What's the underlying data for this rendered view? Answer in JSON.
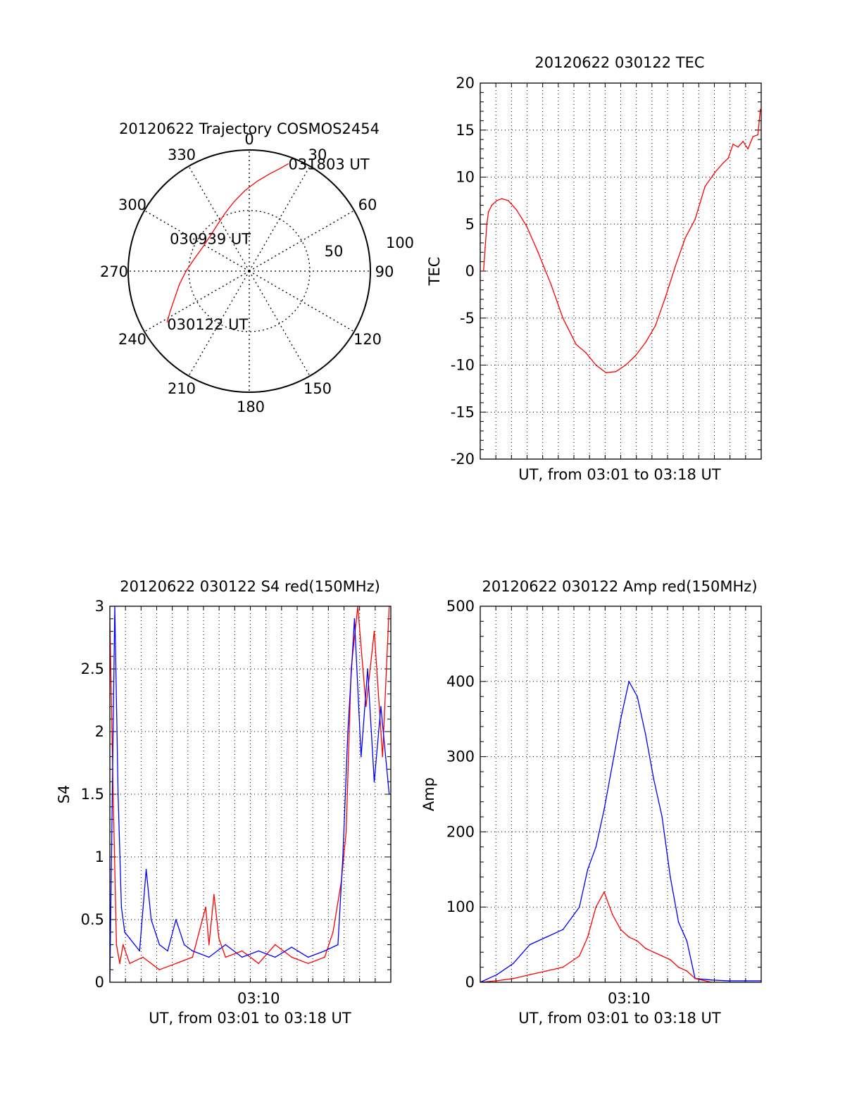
{
  "chart_data": [
    {
      "type": "polar",
      "title": "20120622 Trajectory COSMOS2454",
      "azimuth_labels": [
        "0",
        "30",
        "60",
        "90",
        "120",
        "150",
        "180",
        "210",
        "240",
        "270",
        "300",
        "330"
      ],
      "radius_labels": [
        "50",
        "100"
      ],
      "series": [
        {
          "color": "#ff0000",
          "points": [
            {
              "az": 238,
              "elev": 18
            },
            {
              "az": 243,
              "elev": 24
            },
            {
              "az": 250,
              "elev": 31
            },
            {
              "az": 259,
              "elev": 37
            },
            {
              "az": 270,
              "elev": 43
            },
            {
              "az": 282,
              "elev": 48
            },
            {
              "az": 296,
              "elev": 51
            },
            {
              "az": 312,
              "elev": 51
            },
            {
              "az": 326,
              "elev": 48
            },
            {
              "az": 338,
              "elev": 43
            },
            {
              "az": 348,
              "elev": 37
            },
            {
              "az": 357,
              "elev": 30
            },
            {
              "az": 5,
              "elev": 23
            },
            {
              "az": 12,
              "elev": 16
            },
            {
              "az": 17,
              "elev": 10
            },
            {
              "az": 20,
              "elev": 5
            }
          ]
        }
      ],
      "annotations": [
        {
          "text": "031803 UT",
          "az": 20,
          "elev": 5
        },
        {
          "text": "030939 UT",
          "az": 300,
          "elev": 52
        },
        {
          "text": "030122 UT",
          "az": 238,
          "elev": 18
        }
      ]
    },
    {
      "type": "line",
      "title": "20120622 030122 TEC",
      "xlabel": "UT, from 03:01 to 03:18 UT",
      "ylabel": "TEC",
      "xlim": [
        0,
        17
      ],
      "ylim": [
        -20,
        20
      ],
      "yticks": [
        "-20",
        "-15",
        "-10",
        "-5",
        "0",
        "5",
        "10",
        "15",
        "20"
      ],
      "grid": true,
      "series": [
        {
          "color": "#ff0000",
          "x": [
            0.2,
            0.3,
            0.4,
            0.5,
            0.7,
            1.0,
            1.3,
            1.7,
            2.2,
            2.8,
            3.5,
            4.3,
            5.0,
            5.8,
            6.4,
            7.0,
            7.6,
            8.2,
            8.8,
            9.4,
            10.0,
            10.6,
            11.2,
            11.8,
            12.4,
            13.0,
            13.6,
            14.2,
            14.7,
            15.0,
            15.3,
            15.6,
            15.9,
            16.2,
            16.5,
            16.8,
            16.95
          ],
          "y": [
            0.0,
            2.5,
            5.0,
            6.3,
            7.0,
            7.5,
            7.7,
            7.5,
            6.5,
            4.8,
            2.0,
            -1.5,
            -5.0,
            -7.8,
            -8.7,
            -10.0,
            -10.8,
            -10.7,
            -10.0,
            -9.0,
            -7.6,
            -5.8,
            -2.8,
            0.5,
            3.5,
            5.5,
            9.0,
            10.5,
            11.5,
            12.0,
            13.5,
            13.2,
            13.8,
            13.0,
            14.3,
            14.5,
            17.2
          ]
        }
      ]
    },
    {
      "type": "line",
      "title": "20120622 030122 S4 red(150MHz)",
      "xlabel": "UT, from 03:01 to 03:18 UT",
      "ylabel": "S4",
      "xlim": [
        0,
        17
      ],
      "ylim": [
        0,
        3
      ],
      "yticks": [
        "0",
        "0.5",
        "1",
        "1.5",
        "2",
        "2.5",
        "3"
      ],
      "xticks": [
        {
          "value": 9,
          "label": "03:10"
        }
      ],
      "grid": true,
      "series": [
        {
          "color": "#ff0000",
          "x": [
            0.0,
            0.2,
            0.4,
            0.6,
            0.8,
            1.2,
            2.0,
            3.0,
            4.0,
            5.0,
            5.8,
            6.0,
            6.3,
            6.6,
            7.0,
            8.0,
            9.0,
            10.0,
            11.0,
            12.0,
            13.0,
            13.5,
            14.0,
            14.3,
            14.6,
            15.0,
            15.5,
            16.0,
            16.5,
            16.9
          ],
          "y": [
            2.9,
            1.5,
            0.3,
            0.15,
            0.3,
            0.15,
            0.2,
            0.1,
            0.15,
            0.2,
            0.6,
            0.3,
            0.7,
            0.35,
            0.2,
            0.25,
            0.15,
            0.3,
            0.2,
            0.15,
            0.2,
            0.4,
            0.8,
            1.2,
            2.5,
            3.0,
            2.2,
            2.8,
            1.8,
            3.0
          ]
        },
        {
          "color": "#0000ff",
          "x": [
            0.0,
            0.3,
            0.5,
            0.7,
            0.9,
            1.2,
            1.8,
            2.2,
            2.5,
            3.0,
            3.5,
            4.0,
            4.5,
            5.0,
            6.0,
            7.0,
            8.0,
            9.0,
            10.0,
            11.0,
            12.0,
            13.0,
            13.8,
            14.1,
            14.4,
            14.8,
            15.2,
            15.6,
            16.0,
            16.4,
            16.9
          ],
          "y": [
            0.0,
            3.0,
            1.5,
            0.6,
            0.4,
            0.35,
            0.25,
            0.9,
            0.5,
            0.3,
            0.25,
            0.5,
            0.3,
            0.25,
            0.2,
            0.3,
            0.2,
            0.25,
            0.2,
            0.28,
            0.2,
            0.25,
            0.3,
            1.0,
            2.0,
            2.9,
            1.8,
            2.5,
            1.6,
            2.2,
            1.5
          ]
        }
      ]
    },
    {
      "type": "line",
      "title": "20120622 030122 Amp red(150MHz)",
      "xlabel": "UT, from 03:01 to 03:18 UT",
      "ylabel": "Amp",
      "xlim": [
        0,
        17
      ],
      "ylim": [
        0,
        500
      ],
      "yticks": [
        "0",
        "100",
        "200",
        "300",
        "400",
        "500"
      ],
      "xticks": [
        {
          "value": 9,
          "label": "03:10"
        }
      ],
      "grid": true,
      "series": [
        {
          "color": "#0000ff",
          "x": [
            0.0,
            1.0,
            2.0,
            3.0,
            4.0,
            5.0,
            6.0,
            6.5,
            7.0,
            7.5,
            8.0,
            8.5,
            9.0,
            9.5,
            10.0,
            10.5,
            11.0,
            11.5,
            12.0,
            12.5,
            13.0,
            14.0,
            15.0,
            16.0,
            17.0
          ],
          "y": [
            0,
            10,
            25,
            50,
            60,
            70,
            100,
            150,
            180,
            230,
            290,
            350,
            400,
            380,
            330,
            270,
            220,
            140,
            80,
            55,
            5,
            3,
            2,
            2,
            2
          ]
        },
        {
          "color": "#ff0000",
          "x": [
            0.0,
            1.0,
            2.0,
            3.0,
            4.0,
            5.0,
            6.0,
            6.5,
            7.0,
            7.5,
            8.0,
            8.5,
            9.0,
            9.5,
            10.0,
            10.5,
            11.0,
            11.5,
            12.0,
            12.5,
            13.0,
            14.0,
            17.0
          ],
          "y": [
            0,
            2,
            5,
            10,
            15,
            20,
            35,
            60,
            100,
            120,
            90,
            70,
            60,
            55,
            45,
            40,
            35,
            30,
            20,
            15,
            5,
            0,
            0
          ]
        }
      ]
    }
  ]
}
